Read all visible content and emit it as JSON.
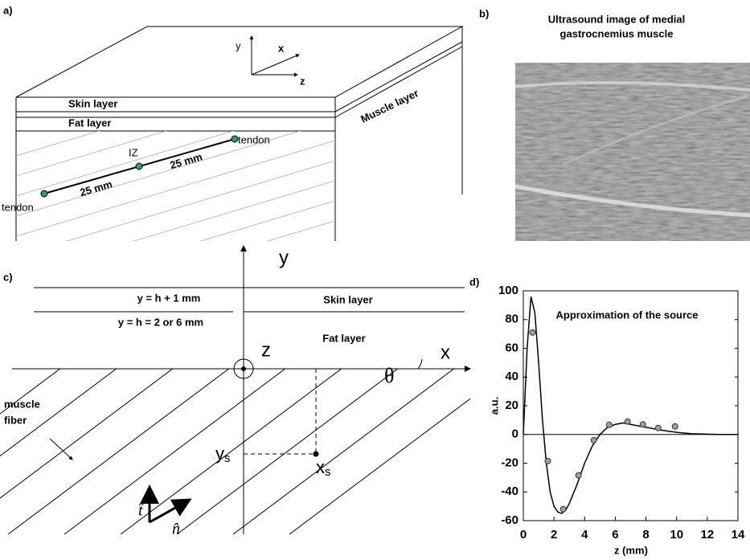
{
  "panel_a": {
    "label": "a)",
    "axis_y": "y",
    "axis_x": "x",
    "axis_z": "z",
    "skin": "Skin layer",
    "fat": "Fat layer",
    "muscle": "Muscle layer",
    "tendon_top": "tendon",
    "iz": "IZ",
    "dist_1": "25 mm",
    "dist_2": "25 mm",
    "tendon_bottom": "tendon"
  },
  "panel_b": {
    "label": "b)",
    "title_lines": [
      "Ultrasound image of medial",
      "gastrocnemius muscle"
    ]
  },
  "panel_c": {
    "label": "c)",
    "skin_boundary": "y = h + 1 mm",
    "fat_boundary": "y = h = 2 or 6 mm",
    "skin": "Skin layer",
    "fat": "Fat layer",
    "axis_y": "y",
    "axis_z": "z",
    "axis_x": "x",
    "angle": "θ",
    "fiber_lines": [
      "muscle",
      "fiber"
    ],
    "source_y": {
      "base": "y",
      "sub": "s"
    },
    "source_x": {
      "base": "x",
      "sub": "s"
    },
    "unit_t": "t̂",
    "unit_n": "n̂"
  },
  "chart_data": {
    "type": "line",
    "label": "d)",
    "title": "Approximation of the source",
    "y_label": "a.u.",
    "x_label": "z (mm)",
    "xlim": [
      0,
      14
    ],
    "xticks": [
      0,
      2,
      4,
      6,
      8,
      10,
      12,
      14
    ],
    "ylim": [
      -60,
      100
    ],
    "yticks": [
      -60,
      -40,
      -20,
      0,
      20,
      40,
      60,
      80,
      100
    ],
    "series": [
      {
        "style": "line",
        "color": "#000000",
        "x": [
          0,
          0.25,
          0.5,
          0.75,
          1,
          1.25,
          1.5,
          1.75,
          2,
          2.25,
          2.5,
          2.75,
          3,
          3.5,
          4,
          4.5,
          5,
          5.5,
          6,
          6.5,
          7,
          8,
          9,
          10,
          11,
          12,
          13,
          14
        ],
        "values": [
          0,
          60,
          96,
          85,
          50,
          10,
          -20,
          -40,
          -50,
          -54,
          -55,
          -53,
          -48,
          -35,
          -20,
          -8,
          0,
          5,
          7,
          8,
          7,
          5,
          3,
          1.5,
          0.5,
          0.2,
          0,
          0
        ]
      },
      {
        "style": "markers",
        "color": "#a0a0a0",
        "x": [
          0.6,
          1.6,
          2.6,
          3.6,
          4.6,
          5.6,
          6.8,
          7.8,
          8.8,
          9.9
        ],
        "values": [
          71,
          -18.5,
          -52,
          -28.5,
          -4,
          6.7,
          9,
          7,
          4.5,
          5.6
        ]
      }
    ]
  }
}
